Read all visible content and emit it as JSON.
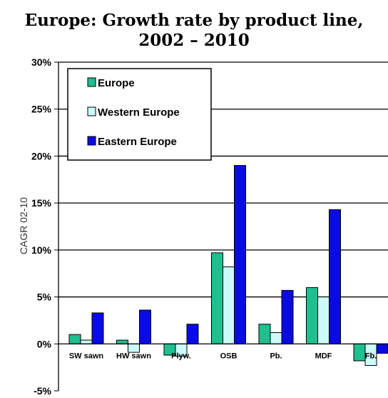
{
  "chart_data": {
    "type": "bar",
    "title_lines": [
      "Europe: Growth rate by product line,",
      "2002 – 2010"
    ],
    "ylabel": "CAGR 02-10",
    "ylim": [
      -0.05,
      0.3
    ],
    "y_ticks": [
      -0.05,
      0,
      0.05,
      0.1,
      0.15,
      0.2,
      0.25,
      0.3
    ],
    "y_tick_labels": [
      "-5%",
      "0%",
      "5%",
      "10%",
      "15%",
      "20%",
      "25%",
      "30%"
    ],
    "categories": [
      "SW sawn",
      "HW sawn",
      "Plyw.",
      "OSB",
      "Pb.",
      "MDF",
      "Fb."
    ],
    "series": [
      {
        "name": "Europe",
        "color": "#1fbf8f",
        "values": [
          0.01,
          0.004,
          -0.012,
          0.097,
          0.021,
          0.06,
          -0.018
        ]
      },
      {
        "name": "Western Europe",
        "color": "#ccfafa",
        "values": [
          0.004,
          -0.009,
          -0.013,
          0.082,
          0.012,
          0.05,
          -0.023
        ]
      },
      {
        "name": "Eastern Europe",
        "color": "#0a0ae6",
        "values": [
          0.033,
          0.036,
          0.021,
          0.19,
          0.057,
          0.143,
          -0.01
        ]
      }
    ],
    "grid": true,
    "legend_position": "top-left"
  }
}
